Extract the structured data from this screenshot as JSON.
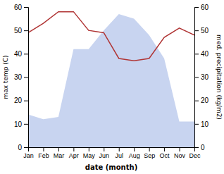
{
  "chart_data": {
    "type": "line",
    "x_label": "date (month)",
    "y_label": "max temp (C)",
    "y2_label": "med. precipitation (kg/m2)",
    "categories": [
      "Jan",
      "Feb",
      "Mar",
      "Apr",
      "May",
      "Jun",
      "Jul",
      "Aug",
      "Sep",
      "Oct",
      "Nov",
      "Dec"
    ],
    "series": [
      {
        "type": "area",
        "axis": "y2",
        "color": "#c8d4f0",
        "values": [
          14,
          12,
          13,
          42,
          42,
          50,
          57,
          55,
          48,
          38,
          11,
          11
        ]
      },
      {
        "type": "line",
        "color": "#b03535",
        "values": [
          49,
          53,
          58,
          58,
          50,
          49,
          38,
          37,
          38,
          47,
          51,
          48
        ]
      }
    ],
    "ylim": [
      0,
      60
    ],
    "yticks": [
      0,
      10,
      20,
      30,
      40,
      50,
      60
    ],
    "y2lim": [
      0,
      60
    ],
    "y2ticks": [
      0,
      10,
      20,
      30,
      40,
      50,
      60
    ]
  }
}
